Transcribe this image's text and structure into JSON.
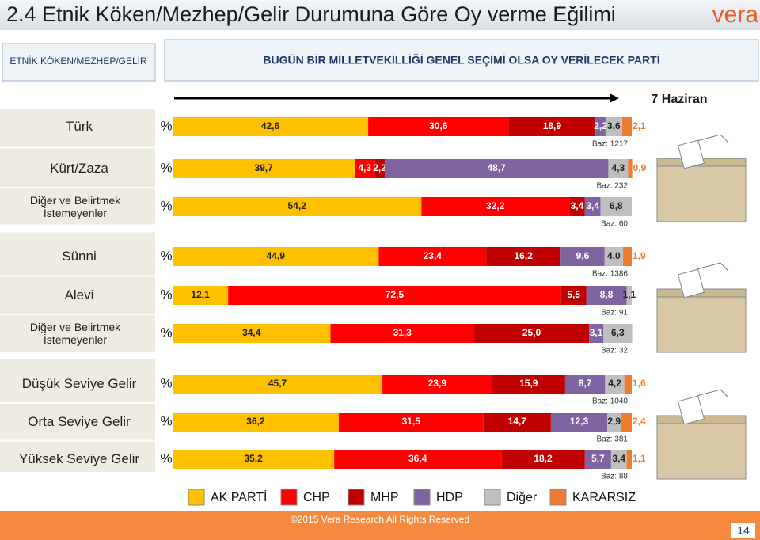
{
  "header": {
    "title": "2.4 Etnik Köken/Mezhep/Gelir Durumuna Göre Oy verme Eğilimi",
    "logo": "vera",
    "left_box": "ETNİK KÖKEN/MEZHEP/GELİR",
    "right_box": "BUGÜN BİR MİLLETVEKİLLİĞİ GENEL SEÇİMİ OLSA OY VERİLECEK PARTİ",
    "date": "7 Haziran"
  },
  "chart_data": {
    "type": "bar",
    "stacked": true,
    "orientation": "horizontal",
    "unit": "%",
    "categories": [
      "Türk",
      "Kürt/Zaza",
      "Diğer ve Belirtmek İstemeyenler",
      "Sünni",
      "Alevi",
      "Diğer ve Belirtmek İstemeyenler",
      "Düşük Seviye Gelir",
      "Orta Seviye Gelir",
      "Yüksek Seviye Gelir"
    ],
    "bases": [
      "Baz: 1217",
      "Baz: 232",
      "Baz: 60",
      "Baz: 1386",
      "Baz: 91",
      "Baz: 32",
      "Baz: 1040",
      "Baz: 381",
      "Baz: 88"
    ],
    "series": [
      {
        "name": "AK PARTİ",
        "color": "#FFC000",
        "values": [
          42.6,
          39.7,
          54.2,
          44.9,
          12.1,
          34.4,
          45.7,
          36.2,
          35.2
        ],
        "value_labels": [
          "42,6",
          "39,7",
          "54,2",
          "44,9",
          "12,1",
          "34,4",
          "45,7",
          "36,2",
          "35,2"
        ]
      },
      {
        "name": "CHP",
        "color": "#FF0000",
        "values": [
          30.6,
          4.3,
          32.2,
          23.4,
          72.5,
          31.3,
          23.9,
          31.5,
          36.4
        ],
        "value_labels": [
          "30,6",
          "4,3",
          "32,2",
          "23,4",
          "72,5",
          "31,3",
          "23,9",
          "31,5",
          "36,4"
        ]
      },
      {
        "name": "MHP",
        "color": "#C00000",
        "values": [
          18.9,
          2.2,
          3.4,
          16.2,
          5.5,
          25.0,
          15.9,
          14.7,
          18.2
        ],
        "value_labels": [
          "18,9",
          "2,2",
          "3,4",
          "16,2",
          "5,5",
          "25,0",
          "15,9",
          "14,7",
          "18,2"
        ]
      },
      {
        "name": "HDP",
        "color": "#8064A2",
        "values": [
          2.2,
          48.7,
          3.4,
          9.6,
          8.8,
          3.1,
          8.7,
          12.3,
          5.7
        ],
        "value_labels": [
          "2,2",
          "48,7",
          "3,4",
          "9,6",
          "8,8",
          "3,1",
          "8,7",
          "12,3",
          "5,7"
        ]
      },
      {
        "name": "Diğer",
        "color": "#BFBFBF",
        "values": [
          3.6,
          4.3,
          6.8,
          4.0,
          1.1,
          6.3,
          4.2,
          2.9,
          3.4
        ],
        "value_labels": [
          "3,6",
          "4,3",
          "6,8",
          "4,0",
          "1,1",
          "6,3",
          "4,2",
          "2,9",
          "3,4"
        ]
      },
      {
        "name": "KARARSIZ",
        "color": "#ED7D31",
        "values": [
          2.1,
          0.9,
          null,
          1.9,
          null,
          null,
          1.6,
          2.4,
          1.1
        ],
        "value_labels": [
          "2,1",
          "0,9",
          null,
          "1,9",
          null,
          null,
          "1,6",
          "2,4",
          "1,1"
        ]
      }
    ]
  },
  "footer": {
    "copyright": "©2015 Vera  Research All Rights Reserved",
    "page": "14"
  }
}
